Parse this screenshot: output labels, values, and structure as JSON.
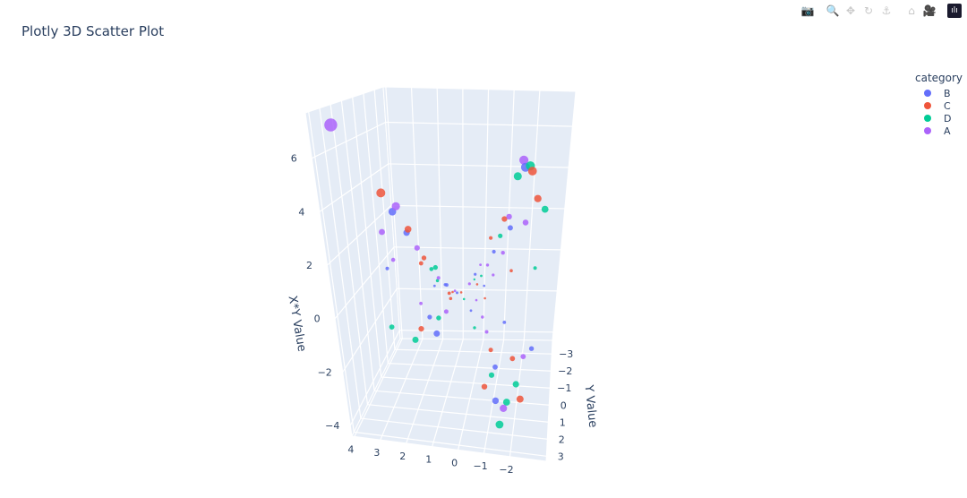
{
  "title": "Plotly 3D Scatter Plot",
  "toolbar": [
    {
      "icon": "camera-icon",
      "glyph": "📷"
    },
    {
      "icon": "zoom-icon",
      "glyph": "🔍"
    },
    {
      "icon": "pan-icon",
      "glyph": "✥"
    },
    {
      "icon": "orbit-rotation-icon",
      "glyph": "↻"
    },
    {
      "icon": "turntable-rotation-icon",
      "glyph": "⚓"
    },
    {
      "icon": "home-icon",
      "glyph": "⌂"
    },
    {
      "icon": "camera-reset-icon",
      "glyph": "🎥"
    },
    {
      "icon": "plotly-logo-icon",
      "glyph": "ılı"
    }
  ],
  "chart_data": {
    "type": "scatter3d",
    "title": "Plotly 3D Scatter Plot",
    "xlabel": "",
    "ylabel": "Y Value",
    "zlabel": "X*Y Value",
    "xlim": [
      -3.4,
      4.1
    ],
    "ylim": [
      -3.8,
      3.3
    ],
    "zlim": [
      -4.4,
      7.7
    ],
    "xticks": [
      "4",
      "3",
      "2",
      "1",
      "0",
      "−1",
      "−2"
    ],
    "xtick_values": [
      4,
      3,
      2,
      1,
      0,
      -1,
      -2
    ],
    "yticks": [
      "−3",
      "−2",
      "−1",
      "0",
      "1",
      "2",
      "3"
    ],
    "ytick_values": [
      -3,
      -2,
      -1,
      0,
      1,
      2,
      3
    ],
    "zticks": [
      "−4",
      "−2",
      "0",
      "2",
      "4",
      "6"
    ],
    "ztick_values": [
      -4,
      -2,
      0,
      2,
      4,
      6
    ],
    "grid": true,
    "legend": {
      "title": "category",
      "placement": "top-right",
      "entries": [
        "B",
        "C",
        "D",
        "A"
      ]
    },
    "colors": {
      "B": "#636efa",
      "C": "#EF553B",
      "D": "#00cc96",
      "A": "#ab63fa"
    },
    "marker_size": "proportional to |X*Y Value|",
    "points": [
      [
        3.9,
        1.8,
        7.02,
        "A"
      ],
      [
        2.6,
        1.7,
        4.42,
        "C"
      ],
      [
        -1.6,
        -2.9,
        4.64,
        "A"
      ],
      [
        -1.5,
        2.5,
        -3.75,
        "D"
      ],
      [
        2.1,
        1.9,
        3.99,
        "A"
      ],
      [
        2.3,
        1.6,
        3.68,
        "B"
      ],
      [
        -1.9,
        -2.4,
        4.56,
        "D"
      ],
      [
        -2.0,
        -2.2,
        4.4,
        "C"
      ],
      [
        -1.7,
        -2.6,
        4.42,
        "B"
      ],
      [
        -1.4,
        -2.8,
        3.92,
        "D"
      ],
      [
        1.8,
        1.7,
        3.06,
        "C"
      ],
      [
        1.9,
        1.5,
        2.85,
        "B"
      ],
      [
        1.6,
        1.4,
        2.24,
        "A"
      ],
      [
        1.4,
        1.3,
        1.82,
        "C"
      ],
      [
        1.2,
        1.1,
        1.32,
        "D"
      ],
      [
        1.0,
        0.9,
        0.9,
        "A"
      ],
      [
        0.8,
        0.7,
        0.56,
        "B"
      ],
      [
        0.5,
        0.4,
        0.2,
        "A"
      ],
      [
        0.3,
        0.2,
        0.06,
        "C"
      ],
      [
        -1.2,
        -2.0,
        2.4,
        "A"
      ],
      [
        -1.0,
        -2.2,
        2.2,
        "C"
      ],
      [
        -0.9,
        -1.8,
        1.62,
        "D"
      ],
      [
        -0.7,
        -1.5,
        1.05,
        "B"
      ],
      [
        -0.5,
        -1.2,
        0.6,
        "A"
      ],
      [
        -0.3,
        -0.9,
        0.27,
        "D"
      ],
      [
        -0.2,
        -0.5,
        0.1,
        "C"
      ],
      [
        1.5,
        -1.2,
        -1.8,
        "D"
      ],
      [
        1.8,
        -0.9,
        -1.62,
        "B"
      ],
      [
        2.2,
        -1.0,
        -2.2,
        "C"
      ],
      [
        1.2,
        -1.3,
        -1.56,
        "A"
      ],
      [
        0.9,
        -0.8,
        -0.72,
        "C"
      ],
      [
        0.6,
        -0.6,
        -0.36,
        "B"
      ],
      [
        2.5,
        -1.1,
        -2.75,
        "D"
      ],
      [
        -0.8,
        1.2,
        -0.96,
        "A"
      ],
      [
        -1.0,
        1.5,
        -1.5,
        "C"
      ],
      [
        -1.2,
        1.7,
        -2.04,
        "B"
      ],
      [
        -1.1,
        2.0,
        -2.2,
        "D"
      ],
      [
        -0.6,
        0.9,
        -0.54,
        "A"
      ],
      [
        -1.3,
        2.3,
        -2.99,
        "B"
      ],
      [
        -1.6,
        2.1,
        -3.36,
        "A"
      ],
      [
        -0.4,
        1.6,
        -0.64,
        "D"
      ],
      [
        -0.9,
        2.6,
        -2.34,
        "C"
      ],
      [
        -2.2,
        0.9,
        -1.98,
        "A"
      ],
      [
        -1.8,
        1.1,
        -1.98,
        "C"
      ],
      [
        -2.5,
        0.7,
        -1.75,
        "B"
      ],
      [
        -2.0,
        1.4,
        -2.8,
        "D"
      ],
      [
        0.2,
        -2.5,
        -0.5,
        "B"
      ],
      [
        -0.1,
        -2.0,
        0.2,
        "A"
      ],
      [
        0.4,
        2.2,
        0.88,
        "C"
      ],
      [
        -2.4,
        -0.4,
        0.96,
        "D"
      ],
      [
        3.0,
        0.3,
        0.9,
        "B"
      ],
      [
        2.7,
        0.5,
        1.35,
        "A"
      ],
      [
        1.1,
        0.6,
        0.66,
        "D"
      ],
      [
        -0.5,
        -0.3,
        0.15,
        "B"
      ],
      [
        0.7,
        -0.2,
        -0.14,
        "C"
      ],
      [
        -0.3,
        0.4,
        -0.12,
        "A"
      ],
      [
        0.1,
        0.8,
        0.08,
        "D"
      ],
      [
        -1.5,
        -0.5,
        0.75,
        "C"
      ],
      [
        -0.8,
        -0.6,
        0.48,
        "A"
      ],
      [
        1.3,
        0.2,
        0.26,
        "B"
      ],
      [
        0.0,
        -1.1,
        0.0,
        "D"
      ],
      [
        -1.4,
        0.6,
        -0.84,
        "B"
      ],
      [
        -0.6,
        0.2,
        -0.12,
        "C"
      ],
      [
        2.0,
        -0.4,
        -0.8,
        "A"
      ],
      [
        -1.9,
        -1.3,
        2.47,
        "A"
      ],
      [
        -1.3,
        -1.6,
        2.08,
        "B"
      ],
      [
        -2.3,
        -1.5,
        3.45,
        "C"
      ],
      [
        -1.1,
        -1.1,
        1.21,
        "A"
      ],
      [
        -2.6,
        -1.2,
        3.12,
        "D"
      ],
      [
        1.7,
        -1.6,
        -2.72,
        "B"
      ],
      [
        -1.7,
        1.9,
        -3.23,
        "D"
      ],
      [
        -2.2,
        1.5,
        -3.3,
        "C"
      ],
      [
        1.6,
        0.9,
        1.44,
        "C"
      ],
      [
        0.6,
        1.5,
        0.9,
        "B"
      ],
      [
        2.9,
        0.9,
        2.61,
        "A"
      ],
      [
        -0.4,
        -2.7,
        1.08,
        "C"
      ],
      [
        0.3,
        -1.7,
        -0.51,
        "A"
      ],
      [
        -0.2,
        1.1,
        -0.22,
        "B"
      ],
      [
        0.9,
        1.9,
        1.71,
        "D"
      ],
      [
        3.3,
        -0.6,
        -1.98,
        "D"
      ]
    ]
  }
}
